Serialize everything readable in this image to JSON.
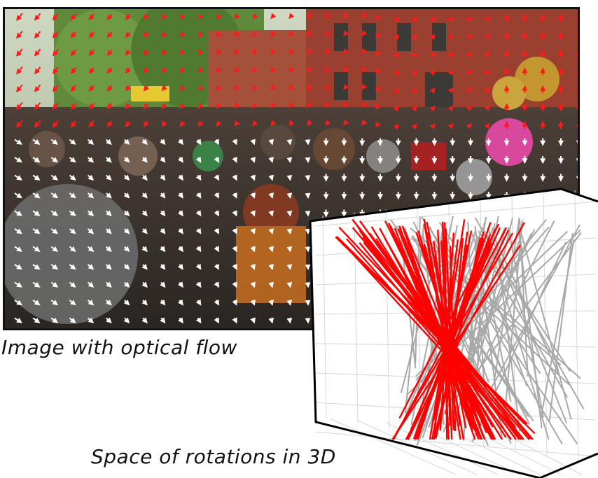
{
  "captions": {
    "image_caption": "Image with optical flow",
    "rotation_caption": "Space of rotations in 3D"
  },
  "colors": {
    "flow_top": "#ff1a1a",
    "flow_bottom": "#ffffff",
    "lines_red": "#ff0000",
    "lines_gray": "#a8a8a8",
    "grid": "#d6d6d6"
  },
  "photo": {
    "description_icon": "crowd-photo-illustration"
  }
}
